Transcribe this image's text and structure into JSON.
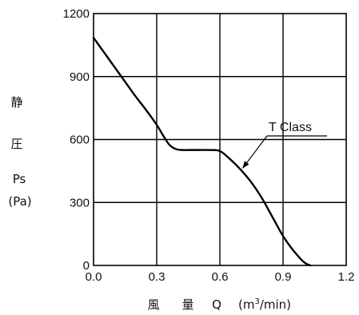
{
  "chart_data": {
    "type": "line",
    "x_ticks": [
      "0.0",
      "0.3",
      "0.6",
      "0.9",
      "1.2"
    ],
    "y_ticks": [
      "0",
      "300",
      "600",
      "900",
      "1200"
    ],
    "xlim": [
      0,
      1.2
    ],
    "ylim": [
      0,
      1200
    ],
    "grid": true,
    "xlabel": {
      "chars": [
        "風",
        "量"
      ],
      "symbol": "Q",
      "unit_open": "(m",
      "unit_sup": "3",
      "unit_close": "/min)"
    },
    "ylabel": {
      "chars": [
        "静",
        "圧"
      ],
      "symbol": "Ps",
      "unit": "(Pa)"
    },
    "series": [
      {
        "name": "T Class",
        "x": [
          0.0,
          0.05,
          0.1,
          0.15,
          0.2,
          0.25,
          0.3,
          0.33,
          0.36,
          0.39,
          0.42,
          0.45,
          0.5,
          0.55,
          0.6,
          0.65,
          0.7,
          0.75,
          0.8,
          0.85,
          0.9,
          0.95,
          1.0,
          1.03
        ],
        "y": [
          1085,
          1015,
          945,
          875,
          805,
          740,
          670,
          620,
          575,
          555,
          550,
          550,
          550,
          550,
          545,
          505,
          455,
          395,
          320,
          230,
          140,
          70,
          15,
          0
        ]
      }
    ],
    "annotations": [
      {
        "text": "T Class",
        "points_to": {
          "x": 0.7,
          "y": 455
        }
      }
    ]
  }
}
